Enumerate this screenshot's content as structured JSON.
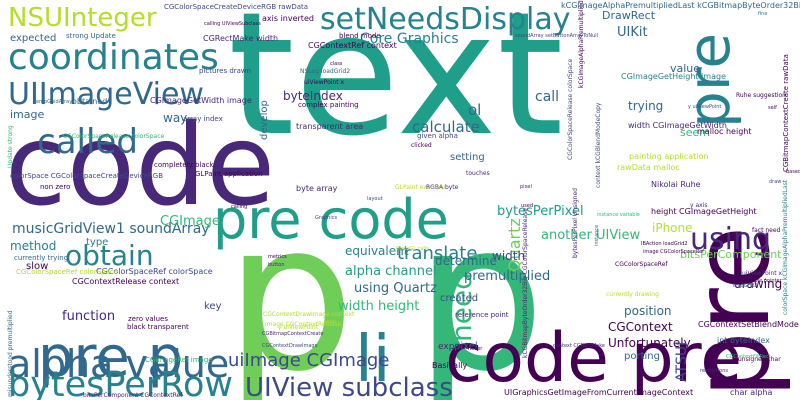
{
  "words": [
    {
      "text": "text",
      "color": "#1f9e89"
    },
    {
      "text": "p",
      "color": "#6ece58"
    },
    {
      "text": "p",
      "color": "#35b779"
    },
    {
      "text": "code",
      "color": "#482878"
    },
    {
      "text": "pre",
      "color": "#440154"
    },
    {
      "text": "pre",
      "color": "#26828e"
    },
    {
      "text": "code pre",
      "color": "#440154"
    },
    {
      "text": "pre code",
      "color": "#1f9e89"
    },
    {
      "text": "li",
      "color": "#26828e"
    },
    {
      "text": "pre p",
      "color": "#31688e"
    },
    {
      "text": "alpha value",
      "color": "#31688e"
    },
    {
      "text": "bytesPerRow",
      "color": "#26828e"
    },
    {
      "text": "UIView subclass",
      "color": "#3e4989"
    },
    {
      "text": "setNeedsDisplay",
      "color": "#26828e"
    },
    {
      "text": "NSUInteger",
      "color": "#b5de2b"
    },
    {
      "text": "coordinates",
      "color": "#26828e"
    },
    {
      "text": "UIImageView",
      "color": "#31688e"
    },
    {
      "text": "called",
      "color": "#31688e"
    },
    {
      "text": "using",
      "color": "#482878"
    },
    {
      "text": "obtain",
      "color": "#26828e"
    },
    {
      "text": "need",
      "color": "#35b779"
    },
    {
      "text": "uiImage CGImage",
      "color": "#3e4989"
    },
    {
      "text": "Core Graphics",
      "color": "#26828e"
    },
    {
      "text": "alpha channel",
      "color": "#1f9e89"
    },
    {
      "text": "bytesPerPixel",
      "color": "#1f9e89"
    },
    {
      "text": "width height",
      "color": "#35b779"
    },
    {
      "text": "musicGridView1 soundArray",
      "color": "#31688e"
    },
    {
      "text": "translate",
      "color": "#26828e"
    },
    {
      "text": "calculate",
      "color": "#31688e"
    },
    {
      "text": "UIKit",
      "color": "#31688e"
    },
    {
      "text": "DrawRect",
      "color": "#31688e"
    },
    {
      "text": "another UIView",
      "color": "#35b779"
    },
    {
      "text": "using Quartz",
      "color": "#31688e"
    },
    {
      "text": "Quartz",
      "color": "#6ece58"
    },
    {
      "text": "method",
      "color": "#26828e"
    },
    {
      "text": "function",
      "color": "#482878"
    },
    {
      "text": "width",
      "color": "#3e4989"
    },
    {
      "text": "position",
      "color": "#31688e"
    },
    {
      "text": "byteIndex",
      "color": "#482878"
    },
    {
      "text": "premultiplied",
      "color": "#31688e"
    },
    {
      "text": "equivalent",
      "color": "#26828e"
    },
    {
      "text": "determine",
      "color": "#31688e"
    },
    {
      "text": "value",
      "color": "#31688e"
    },
    {
      "text": "trying",
      "color": "#31688e"
    },
    {
      "text": "way",
      "color": "#31688e"
    },
    {
      "text": "image",
      "color": "#31688e"
    },
    {
      "text": "call",
      "color": "#31688e"
    },
    {
      "text": "iPhone",
      "color": "#b5de2b"
    },
    {
      "text": "drawing",
      "color": "#440154"
    },
    {
      "text": "bitsPerComponent",
      "color": "#6ece58"
    },
    {
      "text": "CGImage",
      "color": "#35b779"
    },
    {
      "text": "ol",
      "color": "#31688e"
    },
    {
      "text": "develop",
      "color": "#31688e"
    },
    {
      "text": "CGContext",
      "color": "#440154"
    },
    {
      "text": "Unfortunately",
      "color": "#440154"
    },
    {
      "text": "expected",
      "color": "#31688e"
    },
    {
      "text": "pixel",
      "color": "#31688e"
    },
    {
      "text": "seem",
      "color": "#35b779"
    },
    {
      "text": "key",
      "color": "#3e4989"
    },
    {
      "text": "porting",
      "color": "#31688e"
    },
    {
      "text": "ATSUI",
      "color": "#3e4989"
    },
    {
      "text": "created",
      "color": "#3e4989"
    },
    {
      "text": "setting",
      "color": "#31688e"
    },
    {
      "text": "type",
      "color": "#26828e"
    },
    {
      "text": "slow",
      "color": "#440154"
    },
    {
      "text": "expect",
      "color": "#482878"
    },
    {
      "text": "Basically",
      "color": "#440154"
    },
    {
      "text": "kCGImageAlphaPremultipliedLast kCGBitmapByteOrder32Big",
      "color": "#31688e"
    },
    {
      "text": "CGColorSpaceCreateDeviceRGB rawData",
      "color": "#3e4989"
    },
    {
      "text": "axis inverted",
      "color": "#440154"
    },
    {
      "text": "CGRectMake width",
      "color": "#482878"
    },
    {
      "text": "strong Update",
      "color": "#31688e"
    },
    {
      "text": "CGContextRef context",
      "color": "#440154"
    },
    {
      "text": "CGImageGetHeight image",
      "color": "#26828e"
    },
    {
      "text": "CGImageGetWidth image",
      "color": "#482878"
    },
    {
      "text": "width CGImageGetWidth",
      "color": "#482878"
    },
    {
      "text": "malloc height",
      "color": "#440154"
    },
    {
      "text": "painting application",
      "color": "#b5de2b"
    },
    {
      "text": "rawData malloc",
      "color": "#b5de2b"
    },
    {
      "text": "Nikolai Ruhe",
      "color": "#482878"
    },
    {
      "text": "height CGImageGetHeight",
      "color": "#440154"
    },
    {
      "text": "CGColorSpaceRef colorSpace",
      "color": "#3e4989"
    },
    {
      "text": "CGContextRelease context",
      "color": "#440154"
    },
    {
      "text": "CGContextSetBlendMode context",
      "color": "#440154"
    },
    {
      "text": "int byteIndex",
      "color": "#31688e"
    },
    {
      "text": "UIGraphicsGetImageFromCurrentImageContext",
      "color": "#440154"
    },
    {
      "text": "char alpha",
      "color": "#482878"
    },
    {
      "text": "GLPaint application",
      "color": "#440154"
    },
    {
      "text": "completely black",
      "color": "#440154"
    },
    {
      "text": "colorSpace CGColorSpaceCreateDeviceRGB",
      "color": "#3e4989"
    },
    {
      "text": "transparent area",
      "color": "#482878"
    },
    {
      "text": "byte array",
      "color": "#482878"
    },
    {
      "text": "complex painting",
      "color": "#440154"
    },
    {
      "text": "pictures drawn",
      "color": "#3e4989"
    },
    {
      "text": "obtained",
      "color": "#31688e"
    },
    {
      "text": "array index",
      "color": "#3e4989"
    },
    {
      "text": "blend mode",
      "color": "#440154"
    },
    {
      "text": "NSLog loadGrid2",
      "color": "#31688e"
    },
    {
      "text": "uiViewPoint x",
      "color": "#440154"
    },
    {
      "text": "given alpha",
      "color": "#3e4989"
    },
    {
      "text": "clicked",
      "color": "#440154"
    },
    {
      "text": "touches",
      "color": "#482878"
    },
    {
      "text": "RGBA byte",
      "color": "#482878"
    },
    {
      "text": "currently trying",
      "color": "#31688e"
    },
    {
      "text": "black transparent",
      "color": "#440154"
    },
    {
      "text": "zero values",
      "color": "#440154"
    },
    {
      "text": "non zero",
      "color": "#440154"
    },
    {
      "text": "CGContextDrawImage context",
      "color": "#b5de2b"
    },
    {
      "text": "CGImageRef image",
      "color": "#35b779"
    },
    {
      "text": "image CGContextRelease",
      "color": "#b5de2b"
    },
    {
      "text": "reference point",
      "color": "#482878"
    },
    {
      "text": "y uiViewPoint",
      "color": "#b5de2b"
    },
    {
      "text": "bitsPerComponent CGContextRef",
      "color": "#482878"
    },
    {
      "text": "misunderstood premultiplied",
      "color": "#31688e"
    },
    {
      "text": "Update strong",
      "color": "#35b779"
    },
    {
      "text": "CGColorSpaceRelease colorSpace",
      "color": "#35b779"
    },
    {
      "text": "bytesPerPixel Unsigned",
      "color": "#482878"
    },
    {
      "text": "context kCGBlendModeCopy",
      "color": "#3e4989"
    },
    {
      "text": "CGColorSpaceRelease colorSpace",
      "color": "#3e4989"
    },
    {
      "text": "kCGImageAlphaPremultipliedLast",
      "color": "#440154"
    },
    {
      "text": "kCGBitmapByteOrder32Big CGColorSpaceRelease",
      "color": "#482878"
    },
    {
      "text": "CGBitmapContextCreate rawData",
      "color": "#440154"
    },
    {
      "text": "colorSpace kCGImageAlphaPremultipliedLast",
      "color": "#26828e"
    },
    {
      "text": "unsigned char",
      "color": "#440154"
    },
    {
      "text": "currently drawing",
      "color": "#b5de2b"
    },
    {
      "text": "CGColorSpaceRef",
      "color": "#440154"
    },
    {
      "text": "uiViewPoint x",
      "color": "#482878"
    },
    {
      "text": "Ruhe suggestion",
      "color": "#440154"
    },
    {
      "text": "y axis",
      "color": "#482878"
    },
    {
      "text": "instance variable",
      "color": "#35b779"
    },
    {
      "text": "fact need",
      "color": "#440154"
    },
    {
      "text": "loadGrid2",
      "color": "#31688e"
    },
    {
      "text": "variable pointer",
      "color": "#440154"
    },
    {
      "text": "CGContextFillRect",
      "color": "#35b779"
    },
    {
      "text": "IBAction loadGrid2",
      "color": "#440154"
    },
    {
      "text": "image CGColorSpaceRef",
      "color": "#440154"
    },
    {
      "text": "y uiViewPoint",
      "color": "#3e4989"
    },
    {
      "text": "soundArray setButtonArrayToNull",
      "color": "#3e4989"
    },
    {
      "text": "calling UIViewSubclass",
      "color": "#440154"
    },
    {
      "text": "GLPaint example",
      "color": "#b5de2b"
    },
    {
      "text": "OpenGL calls",
      "color": "#b5de2b"
    },
    {
      "text": "CGContextDrawImage",
      "color": "#3e4989"
    },
    {
      "text": "CGBitmapContextCreate",
      "color": "#482878"
    },
    {
      "text": "context CGRectMake",
      "color": "#482878"
    },
    {
      "text": "restrictions",
      "color": "#482878"
    },
    {
      "text": "layout",
      "color": "#3e4989"
    },
    {
      "text": "metrics",
      "color": "#440154"
    },
    {
      "text": "button",
      "color": "#482878"
    },
    {
      "text": "Graphics",
      "color": "#3e4989"
    },
    {
      "text": "never",
      "color": "#440154"
    },
    {
      "text": "used",
      "color": "#440154"
    },
    {
      "text": "class",
      "color": "#440154"
    },
    {
      "text": "self",
      "color": "#440154"
    },
    {
      "text": "draw",
      "color": "#3e4989"
    },
    {
      "text": "based",
      "color": "#440154"
    },
    {
      "text": "fine",
      "color": "#26828e"
    },
    {
      "text": "calling",
      "color": "#440154"
    },
    {
      "text": "pixel",
      "color": "#482878"
    },
    {
      "text": "save",
      "color": "#b5de2b"
    },
    {
      "text": "instance",
      "color": "#31688e"
    },
    {
      "text": "tempGuidArray",
      "color": "#31688e"
    },
    {
      "text": "CGColorSpaceRef colorSpace",
      "color": "#b5de2b"
    }
  ]
}
